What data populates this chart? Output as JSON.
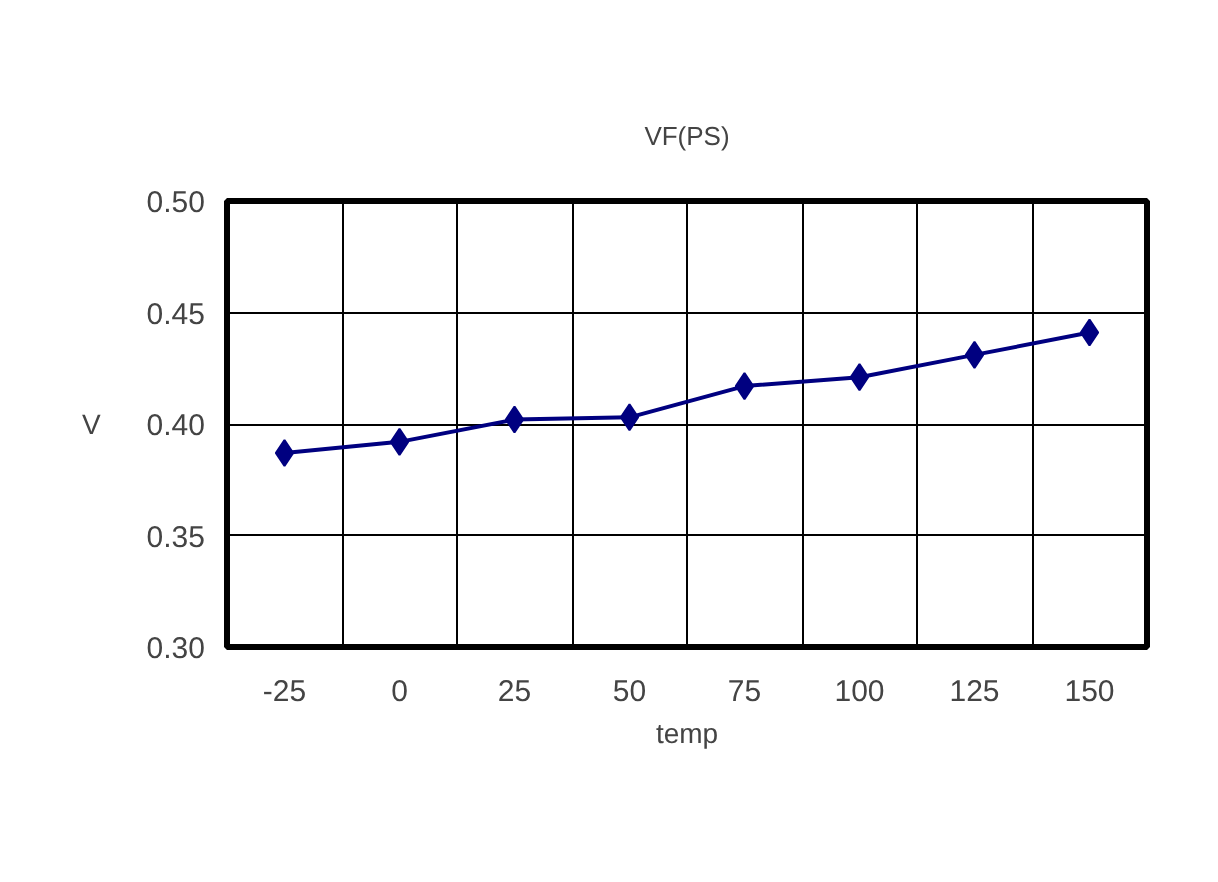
{
  "chart_data": {
    "type": "line",
    "title": "VF(PS)",
    "xlabel": "temp",
    "ylabel": "V",
    "categories": [
      "-25",
      "0",
      "25",
      "50",
      "75",
      "100",
      "125",
      "150"
    ],
    "series": [
      {
        "color": "#000080",
        "values": [
          0.387,
          0.392,
          0.402,
          0.403,
          0.417,
          0.421,
          0.431,
          0.441
        ]
      }
    ],
    "ylim": [
      0.3,
      0.5
    ],
    "yticks": [
      {
        "value": 0.3,
        "label": "0.30"
      },
      {
        "value": 0.35,
        "label": "0.35"
      },
      {
        "value": 0.4,
        "label": "0.40"
      },
      {
        "value": 0.45,
        "label": "0.45"
      },
      {
        "value": 0.5,
        "label": "0.50"
      }
    ],
    "grid": true,
    "marker": "diamond",
    "line_style": "solid"
  }
}
